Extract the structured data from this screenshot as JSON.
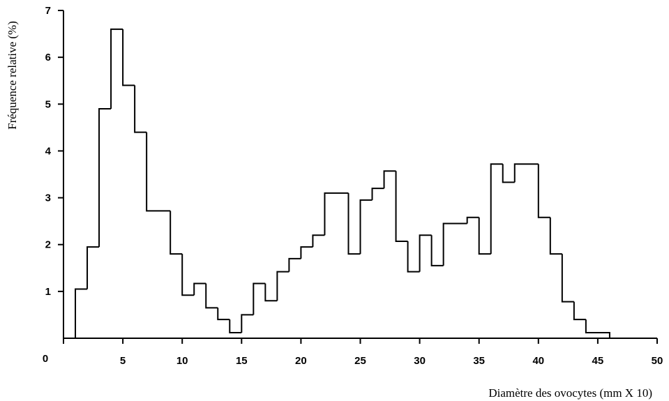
{
  "chart_data": {
    "type": "bar",
    "style": "step-histogram",
    "xlabel": "Diamètre des ovocytes (mm X 10)",
    "ylabel": "Fréquence relative (%)",
    "xlim": [
      0,
      50
    ],
    "ylim": [
      0,
      7
    ],
    "x_ticks": [
      0,
      5,
      10,
      15,
      20,
      25,
      30,
      35,
      40,
      45,
      50
    ],
    "y_ticks": [
      1,
      2,
      3,
      4,
      5,
      6,
      7
    ],
    "grid": false,
    "legend": "none",
    "bins": [
      {
        "from": 1,
        "to": 2,
        "value": 1.05
      },
      {
        "from": 2,
        "to": 3,
        "value": 1.95
      },
      {
        "from": 3,
        "to": 4,
        "value": 4.9
      },
      {
        "from": 4,
        "to": 5,
        "value": 6.6
      },
      {
        "from": 5,
        "to": 6,
        "value": 5.4
      },
      {
        "from": 6,
        "to": 7,
        "value": 4.4
      },
      {
        "from": 7,
        "to": 9,
        "value": 2.72
      },
      {
        "from": 9,
        "to": 10,
        "value": 1.8
      },
      {
        "from": 10,
        "to": 11,
        "value": 0.92
      },
      {
        "from": 11,
        "to": 12,
        "value": 1.17
      },
      {
        "from": 12,
        "to": 13,
        "value": 0.65
      },
      {
        "from": 13,
        "to": 14,
        "value": 0.4
      },
      {
        "from": 14,
        "to": 15,
        "value": 0.12
      },
      {
        "from": 15,
        "to": 16,
        "value": 0.5
      },
      {
        "from": 16,
        "to": 17,
        "value": 1.17
      },
      {
        "from": 17,
        "to": 18,
        "value": 0.8
      },
      {
        "from": 18,
        "to": 19,
        "value": 1.42
      },
      {
        "from": 19,
        "to": 20,
        "value": 1.7
      },
      {
        "from": 20,
        "to": 21,
        "value": 1.95
      },
      {
        "from": 21,
        "to": 22,
        "value": 2.2
      },
      {
        "from": 22,
        "to": 24,
        "value": 3.1
      },
      {
        "from": 24,
        "to": 25,
        "value": 1.8
      },
      {
        "from": 25,
        "to": 26,
        "value": 2.95
      },
      {
        "from": 26,
        "to": 27,
        "value": 3.2
      },
      {
        "from": 27,
        "to": 28,
        "value": 3.57
      },
      {
        "from": 28,
        "to": 29,
        "value": 2.07
      },
      {
        "from": 29,
        "to": 30,
        "value": 1.42
      },
      {
        "from": 30,
        "to": 31,
        "value": 2.2
      },
      {
        "from": 31,
        "to": 32,
        "value": 1.55
      },
      {
        "from": 32,
        "to": 34,
        "value": 2.45
      },
      {
        "from": 34,
        "to": 35,
        "value": 2.58
      },
      {
        "from": 35,
        "to": 36,
        "value": 1.8
      },
      {
        "from": 36,
        "to": 37,
        "value": 3.72
      },
      {
        "from": 37,
        "to": 38,
        "value": 3.33
      },
      {
        "from": 38,
        "to": 40,
        "value": 3.72
      },
      {
        "from": 40,
        "to": 41,
        "value": 2.58
      },
      {
        "from": 41,
        "to": 42,
        "value": 1.8
      },
      {
        "from": 42,
        "to": 43,
        "value": 0.78
      },
      {
        "from": 43,
        "to": 44,
        "value": 0.4
      },
      {
        "from": 44,
        "to": 46,
        "value": 0.12
      }
    ],
    "line_color": "#000000"
  }
}
